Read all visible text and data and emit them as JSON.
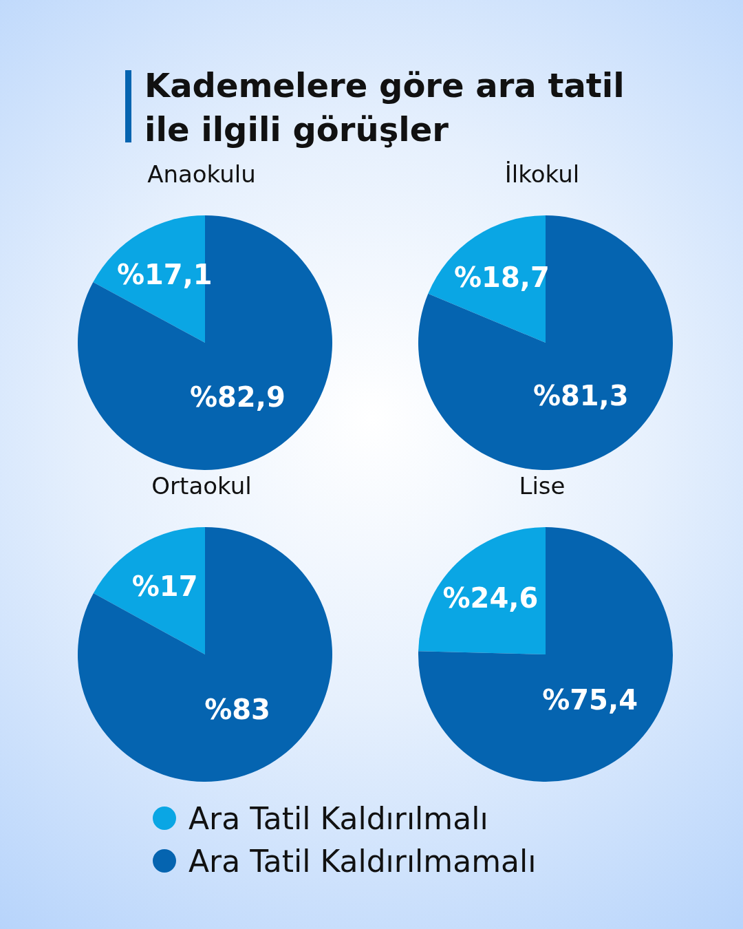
{
  "chart_data": [
    {
      "type": "pie",
      "annotations": [
        "Kademelere göre ara tatil ile ilgili görüşler"
      ],
      "title": "Anaokulu",
      "categories": [
        "Ara Tatil Kaldırılmalı",
        "Ara Tatil Kaldırılmamalı"
      ],
      "values": [
        17.1,
        82.9
      ],
      "colors": [
        "#0aa6e4",
        "#0564b0"
      ],
      "value_labels": [
        "%17,1",
        "%82,9"
      ],
      "legend": "bottom"
    },
    {
      "type": "pie",
      "title": "İlkokul",
      "categories": [
        null,
        null
      ],
      "values": [
        18.7,
        81.3
      ],
      "colors": [
        "#0aa6e4",
        "#0564b0"
      ],
      "value_labels": [
        "%18,7",
        "%81,3"
      ]
    },
    {
      "type": "pie",
      "title": "Ortaokul",
      "categories": [
        null,
        null
      ],
      "values": [
        17,
        83
      ],
      "colors": [
        "#0aa6e4",
        "#0564b0"
      ],
      "value_labels": [
        "%17",
        "%83"
      ]
    },
    {
      "type": "pie",
      "title": "Lise",
      "categories": [
        null,
        null
      ],
      "values": [
        24.6,
        75.4
      ],
      "colors": [
        "#0aa6e4",
        "#0564b0"
      ],
      "value_labels": [
        "%24,6",
        "%75,4"
      ]
    }
  ]
}
